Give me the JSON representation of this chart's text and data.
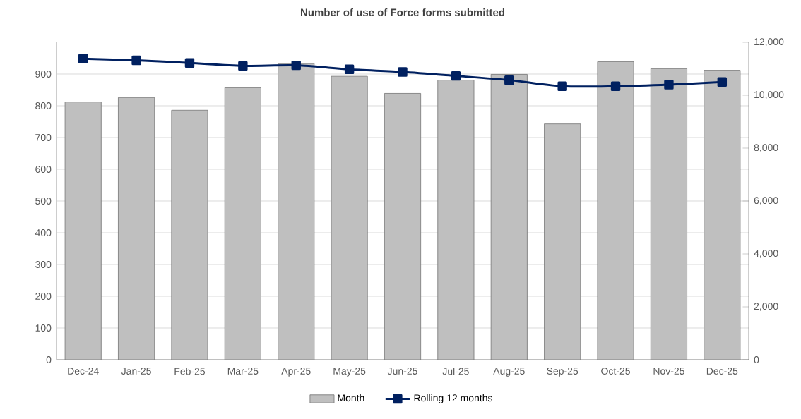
{
  "chart_data": {
    "type": "bar",
    "title": "Number of use of Force forms submitted",
    "categories": [
      "Dec-24",
      "Jan-25",
      "Feb-25",
      "Mar-25",
      "Apr-25",
      "May-25",
      "Jun-25",
      "Jul-25",
      "Aug-25",
      "Sep-25",
      "Oct-25",
      "Nov-25",
      "Dec-25"
    ],
    "series": [
      {
        "name": "Month",
        "color": "#bfbfbf",
        "values": [
          812,
          826,
          786,
          857,
          933,
          893,
          839,
          881,
          899,
          743,
          939,
          917,
          912
        ]
      },
      {
        "name": "Rolling 12 months",
        "type": "line",
        "axis": "y2",
        "color": "#002060",
        "marker": "square",
        "values": [
          11380,
          11320,
          11220,
          11110,
          11130,
          10980,
          10880,
          10730,
          10570,
          10340,
          10340,
          10400,
          10500
        ]
      }
    ],
    "ylim": [
      0,
      1000
    ],
    "yticks": [
      0,
      100,
      200,
      300,
      400,
      500,
      600,
      700,
      800,
      900
    ],
    "y2lim": [
      0,
      12000
    ],
    "y2ticks": [
      {
        "value": 0,
        "label": "0"
      },
      {
        "value": 2000,
        "label": "2,000"
      },
      {
        "value": 4000,
        "label": "4,000"
      },
      {
        "value": 6000,
        "label": "6,000"
      },
      {
        "value": 8000,
        "label": "8,000"
      },
      {
        "value": 10000,
        "label": "10,000"
      },
      {
        "value": 12000,
        "label": "12,000"
      }
    ],
    "grid": "y",
    "legend": "bottom"
  }
}
